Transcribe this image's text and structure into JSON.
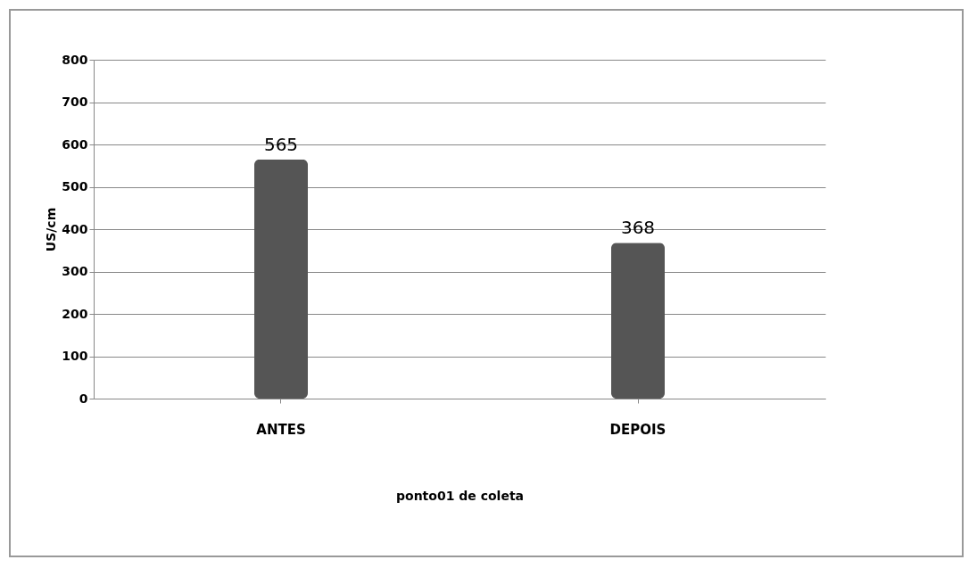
{
  "chart_data": {
    "type": "bar",
    "xlabel": "ponto01 de coleta",
    "ylabel": "US/cm",
    "categories": [
      "ANTES",
      "DEPOIS"
    ],
    "values": [
      565,
      368
    ],
    "color": "#555555",
    "ylim": [
      0,
      800
    ],
    "yticks": [
      0,
      100,
      200,
      300,
      400,
      500,
      600,
      700,
      800
    ],
    "grid": "y",
    "data_labels": true
  }
}
